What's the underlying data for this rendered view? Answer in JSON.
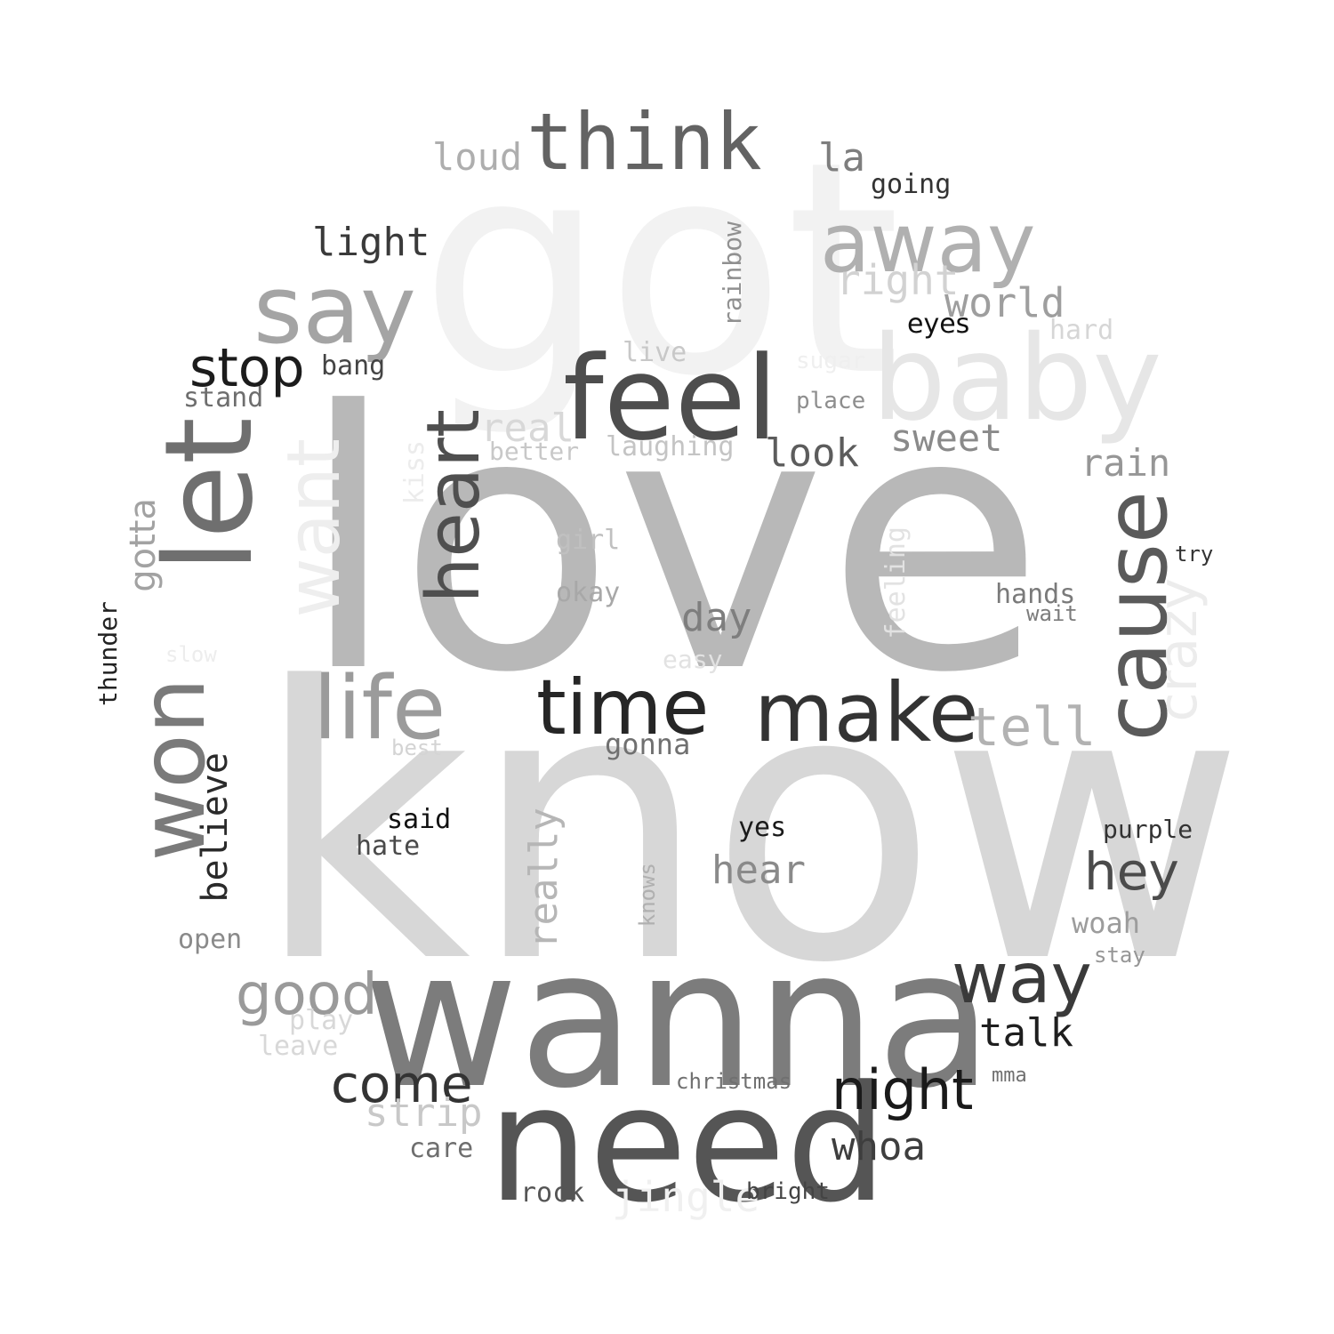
{
  "words": [
    {
      "text": "got",
      "color": "#f2f2f2"
    },
    {
      "text": "love",
      "color": "#b8b8b8"
    },
    {
      "text": "know",
      "color": "#d7d7d7"
    },
    {
      "text": "wanna",
      "color": "#7c7c7c"
    },
    {
      "text": "need",
      "color": "#555555"
    },
    {
      "text": "feel",
      "color": "#4d4d4d"
    },
    {
      "text": "think",
      "color": "#636363"
    },
    {
      "text": "away",
      "color": "#b0b0b0"
    },
    {
      "text": "baby",
      "color": "#e6e6e6"
    },
    {
      "text": "say",
      "color": "#a4a4a4"
    },
    {
      "text": "let",
      "color": "#6f6f6f"
    },
    {
      "text": "won",
      "color": "#7a7a7a"
    },
    {
      "text": "want",
      "color": "#eeeeee"
    },
    {
      "text": "heart",
      "color": "#4f4f4f"
    },
    {
      "text": "cause",
      "color": "#5a5a5a"
    },
    {
      "text": "crazy",
      "color": "#ececec"
    },
    {
      "text": "life",
      "color": "#9b9b9b"
    },
    {
      "text": "time",
      "color": "#262626"
    },
    {
      "text": "make",
      "color": "#333333"
    },
    {
      "text": "tell",
      "color": "#b2b2b2"
    },
    {
      "text": "light",
      "color": "#3a3a3a"
    },
    {
      "text": "stop",
      "color": "#1c1c1c"
    },
    {
      "text": "loud",
      "color": "#aeaeae"
    },
    {
      "text": "la",
      "color": "#7e7e7e"
    },
    {
      "text": "going",
      "color": "#333333"
    },
    {
      "text": "right",
      "color": "#d2d2d2"
    },
    {
      "text": "world",
      "color": "#9e9e9e"
    },
    {
      "text": "eyes",
      "color": "#111111"
    },
    {
      "text": "hard",
      "color": "#d6d6d6"
    },
    {
      "text": "rainbow",
      "color": "#909090"
    },
    {
      "text": "live",
      "color": "#c8c8c8"
    },
    {
      "text": "bang",
      "color": "#444444"
    },
    {
      "text": "stand",
      "color": "#6e6e6e"
    },
    {
      "text": "real",
      "color": "#d8d8d8"
    },
    {
      "text": "better",
      "color": "#c8c8c8"
    },
    {
      "text": "laughing",
      "color": "#c4c4c4"
    },
    {
      "text": "place",
      "color": "#8e8e8e"
    },
    {
      "text": "sugar",
      "color": "#efefef"
    },
    {
      "text": "look",
      "color": "#5c5c5c"
    },
    {
      "text": "sweet",
      "color": "#8a8a8a"
    },
    {
      "text": "rain",
      "color": "#969696"
    },
    {
      "text": "kiss",
      "color": "#ececec"
    },
    {
      "text": "gotta",
      "color": "#a2a2a2"
    },
    {
      "text": "girl",
      "color": "#c0c0c0"
    },
    {
      "text": "okay",
      "color": "#a8a8a8"
    },
    {
      "text": "feeling",
      "color": "#e2e2e2"
    },
    {
      "text": "try",
      "color": "#333333"
    },
    {
      "text": "hands",
      "color": "#7a7a7a"
    },
    {
      "text": "wait",
      "color": "#7c7c7c"
    },
    {
      "text": "day",
      "color": "#7e7e7e"
    },
    {
      "text": "easy",
      "color": "#e2e2e2"
    },
    {
      "text": "slow",
      "color": "#ededed"
    },
    {
      "text": "thunder",
      "color": "#222222"
    },
    {
      "text": "best",
      "color": "#d4d4d4"
    },
    {
      "text": "gonna",
      "color": "#707070"
    },
    {
      "text": "believe",
      "color": "#2a2a2a"
    },
    {
      "text": "said",
      "color": "#111111"
    },
    {
      "text": "hate",
      "color": "#4a4a4a"
    },
    {
      "text": "really",
      "color": "#b6b6b6"
    },
    {
      "text": "yes",
      "color": "#1a1a1a"
    },
    {
      "text": "hear",
      "color": "#8a8a8a"
    },
    {
      "text": "knows",
      "color": "#b0b0b0"
    },
    {
      "text": "purple",
      "color": "#333333"
    },
    {
      "text": "hey",
      "color": "#4b4b4b"
    },
    {
      "text": "open",
      "color": "#8a8a8a"
    },
    {
      "text": "woah",
      "color": "#9c9c9c"
    },
    {
      "text": "stay",
      "color": "#969696"
    },
    {
      "text": "way",
      "color": "#3a3a3a"
    },
    {
      "text": "good",
      "color": "#9a9a9a"
    },
    {
      "text": "play",
      "color": "#d8d8d8"
    },
    {
      "text": "leave",
      "color": "#d8d8d8"
    },
    {
      "text": "talk",
      "color": "#1e1e1e"
    },
    {
      "text": "come",
      "color": "#333333"
    },
    {
      "text": "christmas",
      "color": "#707070"
    },
    {
      "text": "night",
      "color": "#1a1a1a"
    },
    {
      "text": "mma",
      "color": "#707070"
    },
    {
      "text": "strip",
      "color": "#c8c8c8"
    },
    {
      "text": "whoa",
      "color": "#3e3e3e"
    },
    {
      "text": "care",
      "color": "#6e6e6e"
    },
    {
      "text": "rock",
      "color": "#555555"
    },
    {
      "text": "jingle",
      "color": "#f0f0f0"
    },
    {
      "text": "bright",
      "color": "#444444"
    }
  ]
}
